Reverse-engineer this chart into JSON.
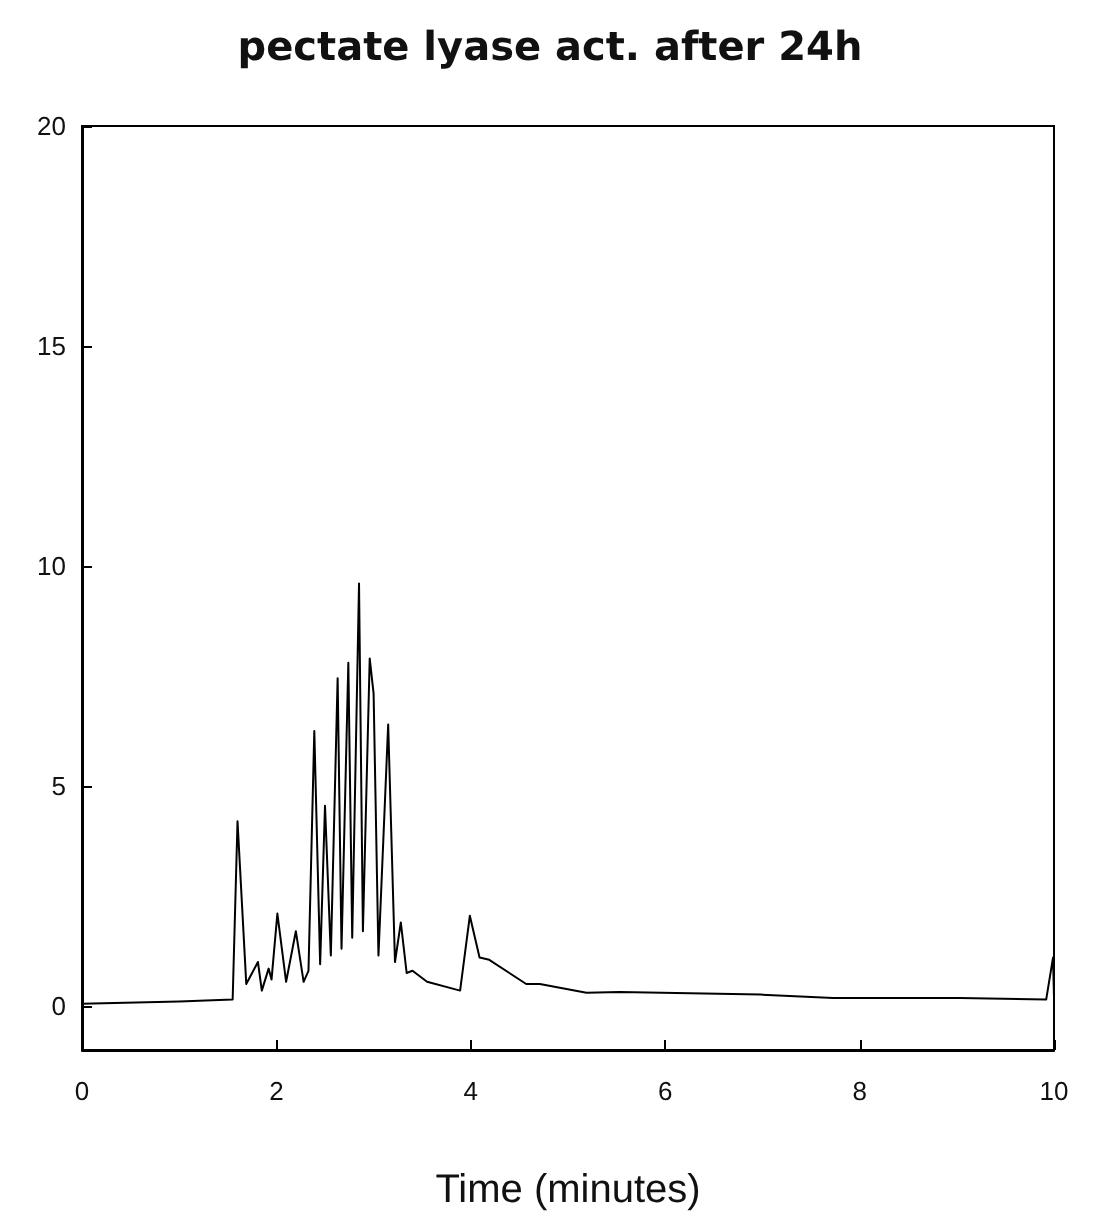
{
  "chart_data": {
    "type": "line",
    "title": "pectate lyase act. after 24h",
    "xlabel": "Time (minutes)",
    "x": [
      0,
      1.0,
      1.55,
      1.6,
      1.69,
      1.81,
      1.85,
      1.92,
      1.95,
      2.01,
      2.1,
      2.2,
      2.28,
      2.33,
      2.39,
      2.45,
      2.5,
      2.56,
      2.63,
      2.67,
      2.74,
      2.78,
      2.85,
      2.89,
      2.96,
      3.0,
      3.05,
      3.15,
      3.22,
      3.28,
      3.34,
      3.4,
      3.55,
      3.89,
      3.99,
      4.09,
      4.19,
      4.57,
      4.71,
      5.19,
      5.53,
      6.98,
      7.73,
      9.03,
      9.92,
      9.99,
      10
    ],
    "series": [
      {
        "color": "#000000",
        "values": [
          0.05,
          0.1,
          0.15,
          4.2,
          0.5,
          1.0,
          0.35,
          0.85,
          0.6,
          2.1,
          0.55,
          1.7,
          0.55,
          0.8,
          6.25,
          0.95,
          4.55,
          1.15,
          7.45,
          1.3,
          7.8,
          1.55,
          9.6,
          1.7,
          7.9,
          7.1,
          1.15,
          6.4,
          1.0,
          1.9,
          0.75,
          0.8,
          0.55,
          0.35,
          2.05,
          1.1,
          1.05,
          0.5,
          0.5,
          0.3,
          0.32,
          0.26,
          0.18,
          0.18,
          0.15,
          1.1,
          0.2
        ]
      }
    ],
    "xlim": [
      0,
      10
    ],
    "xticks": [
      0,
      2,
      4,
      6,
      8,
      10
    ],
    "ylim": [
      -1,
      20
    ],
    "yticks": [
      0,
      5,
      10,
      15,
      20
    ],
    "grid": false,
    "marker": "none",
    "line_style": "solid"
  }
}
